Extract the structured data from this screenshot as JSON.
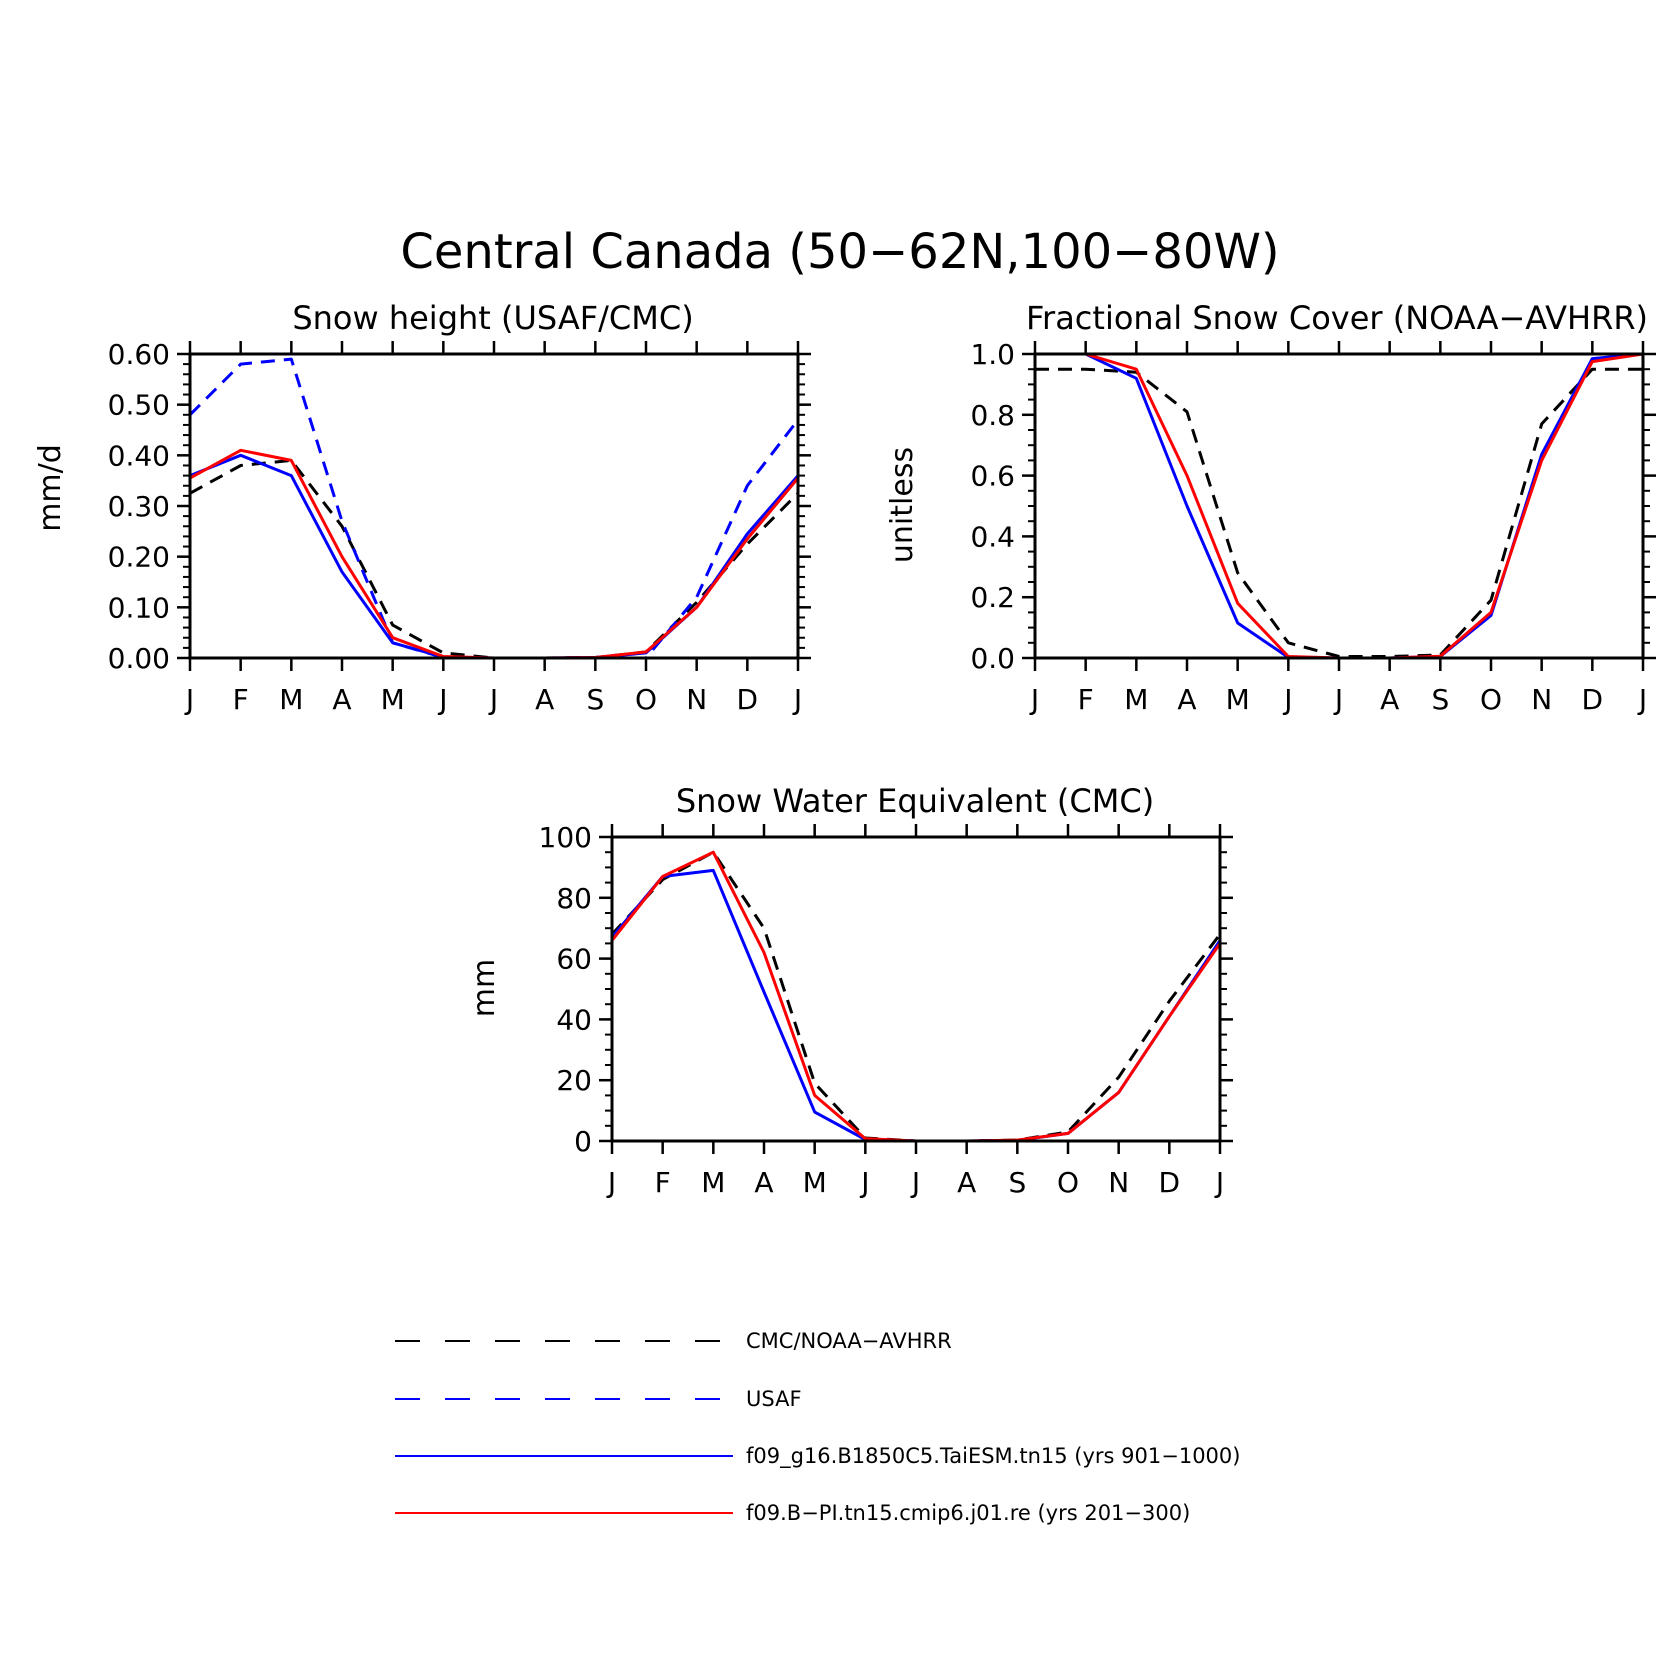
{
  "figure_title": "Central Canada (50−62N,100−80W)",
  "colors": {
    "obs": "#000000",
    "usaf": "#0000ff",
    "taiesm": "#0000ff",
    "cmip6": "#ff0000",
    "axis": "#000000"
  },
  "legend": [
    {
      "key": "obs",
      "label": "CMC/NOAA−AVHRR",
      "color": "#000000",
      "dashed": true
    },
    {
      "key": "usaf",
      "label": "USAF",
      "color": "#0000ff",
      "dashed": true
    },
    {
      "key": "taiesm",
      "label": "f09_g16.B1850C5.TaiESM.tn15 (yrs 901−1000)",
      "color": "#0000ff",
      "dashed": false
    },
    {
      "key": "cmip6",
      "label": "f09.B−PI.tn15.cmip6.j01.re (yrs 201−300)",
      "color": "#ff0000",
      "dashed": false
    }
  ],
  "chart_data": [
    {
      "type": "line",
      "title": "Snow height (USAF/CMC)",
      "xlabel": "",
      "ylabel": "mm/d",
      "x_ticklabels": [
        "J",
        "F",
        "M",
        "A",
        "M",
        "J",
        "J",
        "A",
        "S",
        "O",
        "N",
        "D",
        "J"
      ],
      "y_ticks": [
        0,
        0.1,
        0.2,
        0.3,
        0.4,
        0.5,
        0.6
      ],
      "y_ticklabels": [
        "0.00",
        "0.10",
        "0.20",
        "0.30",
        "0.40",
        "0.50",
        "0.60"
      ],
      "ylim": [
        0,
        0.6
      ],
      "y_minor_step": 0.02,
      "series": [
        {
          "key": "obs",
          "dashed": true,
          "color": "#000000",
          "values": [
            0.325,
            0.38,
            0.39,
            0.26,
            0.065,
            0.01,
            0.0,
            0.0,
            0.001,
            0.012,
            0.11,
            0.225,
            0.325
          ]
        },
        {
          "key": "usaf",
          "dashed": true,
          "color": "#0000ff",
          "values": [
            0.48,
            0.58,
            0.59,
            0.27,
            0.03,
            0.001,
            0.0,
            0.0,
            0.0,
            0.0,
            0.12,
            0.34,
            0.47
          ]
        },
        {
          "key": "taiesm",
          "dashed": false,
          "color": "#0000ff",
          "values": [
            0.36,
            0.4,
            0.36,
            0.17,
            0.03,
            0.002,
            0.0,
            0.0,
            0.001,
            0.01,
            0.1,
            0.245,
            0.36
          ]
        },
        {
          "key": "cmip6",
          "dashed": false,
          "color": "#ff0000",
          "values": [
            0.355,
            0.41,
            0.39,
            0.2,
            0.04,
            0.003,
            0.0,
            0.0,
            0.001,
            0.012,
            0.1,
            0.235,
            0.355
          ]
        }
      ]
    },
    {
      "type": "line",
      "title": "Fractional Snow Cover (NOAA−AVHRR)",
      "xlabel": "",
      "ylabel": "unitless",
      "x_ticklabels": [
        "J",
        "F",
        "M",
        "A",
        "M",
        "J",
        "J",
        "A",
        "S",
        "O",
        "N",
        "D",
        "J"
      ],
      "y_ticks": [
        0,
        0.2,
        0.4,
        0.6,
        0.8,
        1.0
      ],
      "y_ticklabels": [
        "0.0",
        "0.2",
        "0.4",
        "0.6",
        "0.8",
        "1.0"
      ],
      "ylim": [
        0,
        1
      ],
      "y_minor_step": 0.05,
      "series": [
        {
          "key": "obs",
          "dashed": true,
          "color": "#000000",
          "values": [
            0.95,
            0.95,
            0.94,
            0.81,
            0.28,
            0.05,
            0.005,
            0.005,
            0.01,
            0.19,
            0.77,
            0.95,
            0.95
          ]
        },
        {
          "key": "taiesm",
          "dashed": false,
          "color": "#0000ff",
          "values": [
            1.0,
            1.0,
            0.92,
            0.5,
            0.115,
            0.002,
            0.0,
            0.0,
            0.005,
            0.14,
            0.67,
            0.985,
            1.0
          ]
        },
        {
          "key": "cmip6",
          "dashed": false,
          "color": "#ff0000",
          "values": [
            1.0,
            1.0,
            0.95,
            0.6,
            0.18,
            0.005,
            0.0,
            0.0,
            0.006,
            0.15,
            0.65,
            0.975,
            1.0
          ]
        }
      ]
    },
    {
      "type": "line",
      "title": "Snow Water Equivalent (CMC)",
      "xlabel": "",
      "ylabel": "mm",
      "x_ticklabels": [
        "J",
        "F",
        "M",
        "A",
        "M",
        "J",
        "J",
        "A",
        "S",
        "O",
        "N",
        "D",
        "J"
      ],
      "y_ticks": [
        0,
        20,
        40,
        60,
        80,
        100
      ],
      "y_ticklabels": [
        "0",
        "20",
        "40",
        "60",
        "80",
        "100"
      ],
      "ylim": [
        0,
        100
      ],
      "y_minor_step": 5,
      "series": [
        {
          "key": "obs",
          "dashed": true,
          "color": "#000000",
          "values": [
            68,
            86,
            95,
            70,
            19,
            1,
            0,
            0,
            0.3,
            3,
            21,
            46,
            68
          ]
        },
        {
          "key": "taiesm",
          "dashed": false,
          "color": "#0000ff",
          "values": [
            67,
            87,
            89,
            49,
            9.5,
            0.5,
            0,
            0,
            0.2,
            2.5,
            16,
            41,
            66
          ]
        },
        {
          "key": "cmip6",
          "dashed": false,
          "color": "#ff0000",
          "values": [
            66,
            87,
            95,
            62,
            15,
            0.8,
            0,
            0,
            0.3,
            2.5,
            16,
            41,
            65
          ]
        }
      ]
    }
  ]
}
